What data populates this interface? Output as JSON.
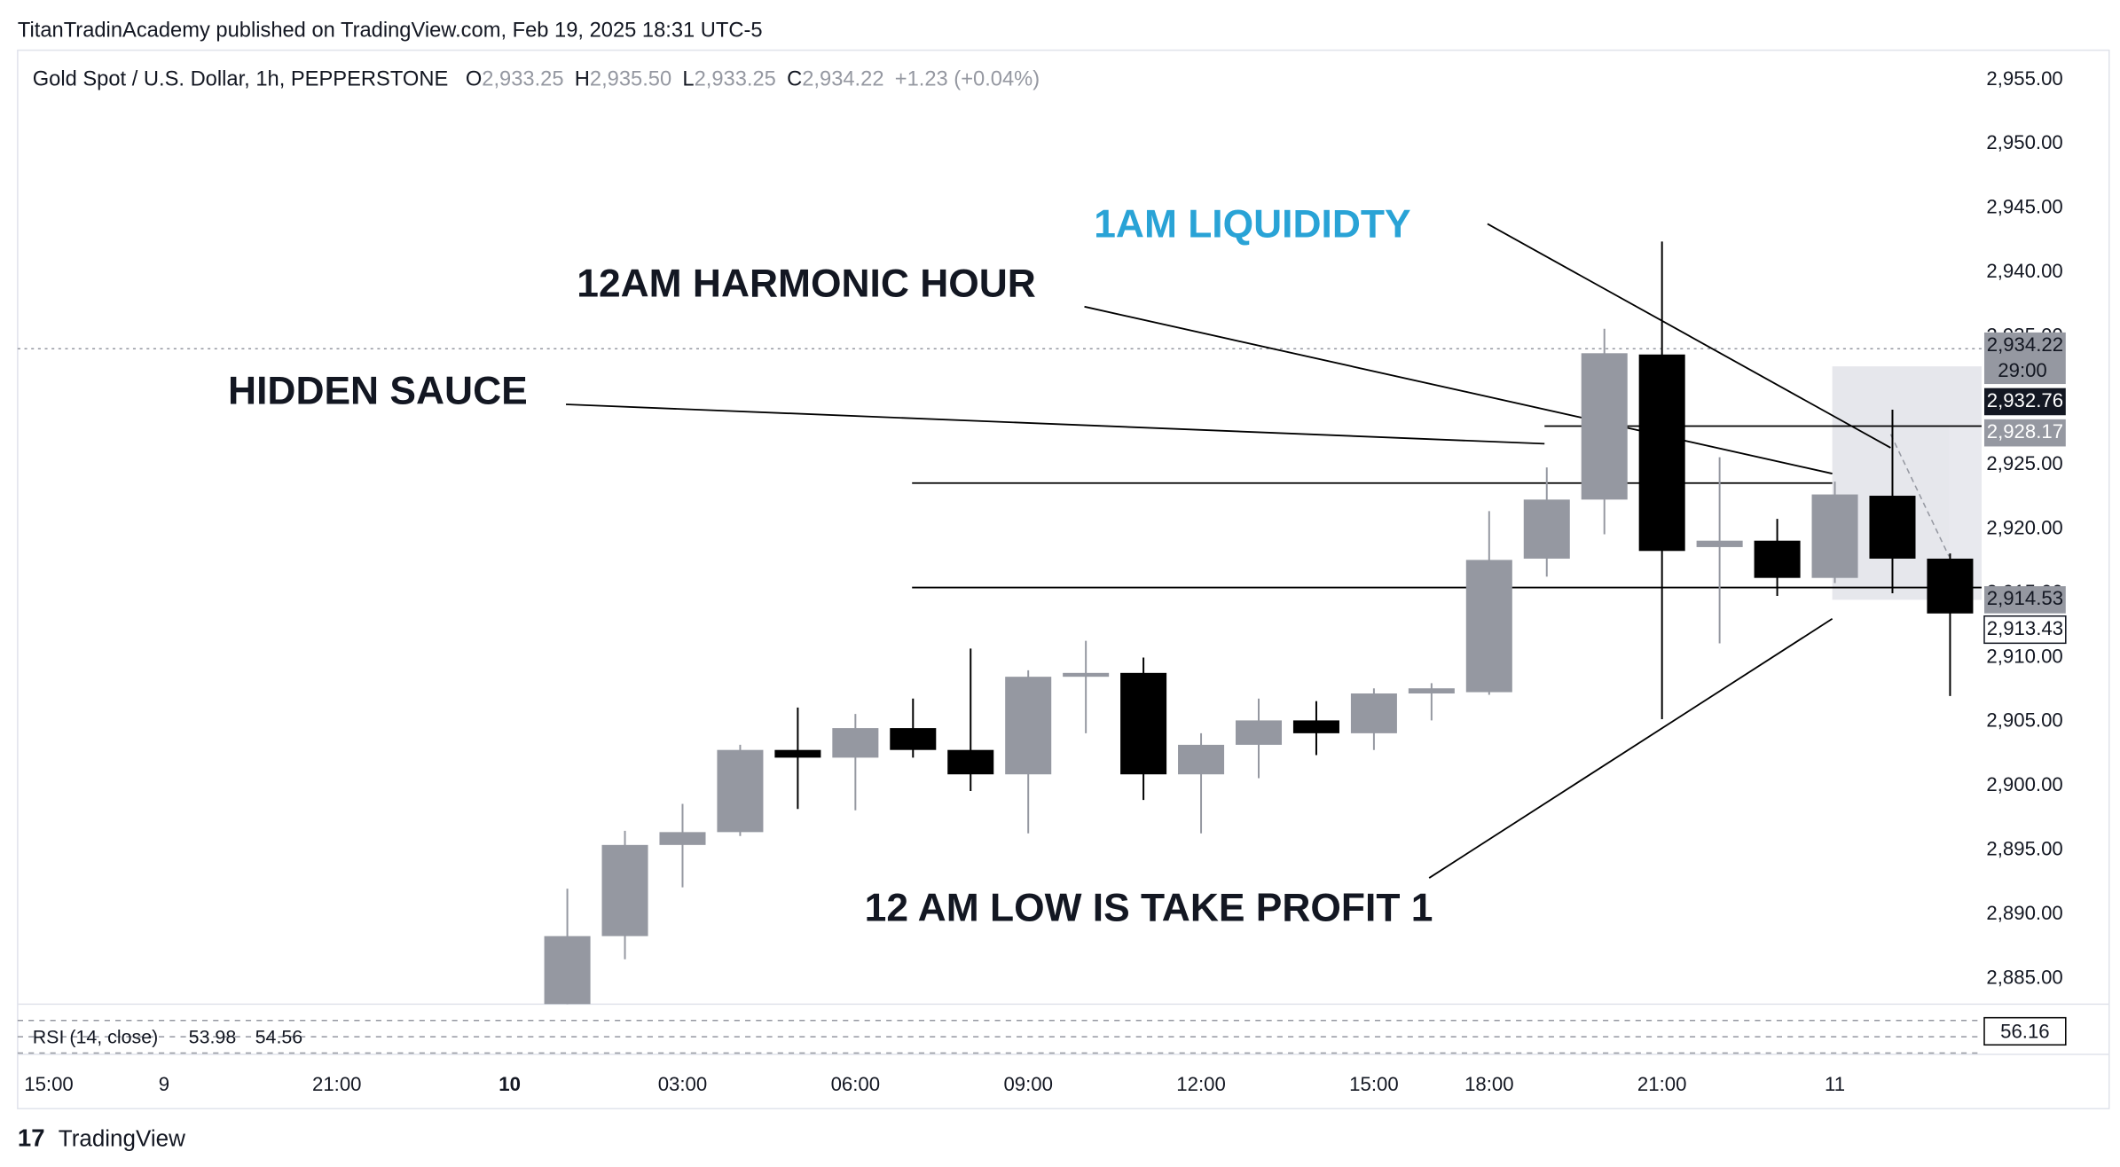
{
  "header": {
    "publisher": "TitanTradinAcademy published on TradingView.com, Feb 19, 2025 18:31 UTC-5"
  },
  "footer": {
    "brand": "TradingView"
  },
  "chart_data": {
    "type": "candlestick",
    "title": "Gold Spot / U.S. Dollar, 1h, PEPPERSTONE",
    "ohlc_legend": [
      {
        "key": "O",
        "value": "2,933.25"
      },
      {
        "key": "H",
        "value": "2,935.50"
      },
      {
        "key": "L",
        "value": "2,933.25"
      },
      {
        "key": "C",
        "value": "2,934.22"
      }
    ],
    "change": "+1.23 (+0.04%)",
    "up_color": "#9598a1",
    "down_color": "#000000",
    "open": [
      2883.0,
      2888.3,
      2895.4,
      2896.4,
      2902.8,
      2902.2,
      2904.5,
      2902.8,
      2900.9,
      2908.5,
      2908.8,
      2900.9,
      2903.2,
      2905.1,
      2904.1,
      2907.2,
      2907.3,
      2917.7,
      2922.3,
      2933.6,
      2918.6,
      2919.1,
      2916.2,
      2922.6,
      2917.7
    ],
    "high": [
      2892.0,
      2896.5,
      2898.6,
      2903.2,
      2906.1,
      2905.6,
      2906.8,
      2910.7,
      2909.0,
      2911.3,
      2910.0,
      2904.1,
      2906.8,
      2906.6,
      2907.6,
      2908.0,
      2921.4,
      2924.8,
      2935.6,
      2942.4,
      2925.6,
      2920.8,
      2923.7,
      2929.3,
      2918.1
    ],
    "low": [
      2882.5,
      2886.5,
      2892.1,
      2896.1,
      2898.2,
      2898.1,
      2902.2,
      2899.6,
      2896.3,
      2904.1,
      2898.9,
      2896.3,
      2900.6,
      2902.4,
      2902.8,
      2905.1,
      2907.1,
      2916.3,
      2919.6,
      2905.2,
      2911.1,
      2914.8,
      2915.8,
      2915.0,
      2907.0
    ],
    "close": [
      2888.3,
      2895.4,
      2896.4,
      2902.8,
      2902.2,
      2904.5,
      2902.8,
      2900.9,
      2908.5,
      2908.8,
      2900.9,
      2903.2,
      2905.1,
      2904.1,
      2907.2,
      2907.6,
      2917.6,
      2922.3,
      2933.7,
      2918.3,
      2919.1,
      2916.2,
      2922.7,
      2917.7,
      2913.43
    ],
    "ylim": [
      2883.0,
      2957.3
    ],
    "yticks": [
      {
        "value": 2885,
        "label": "2,885.00"
      },
      {
        "value": 2890,
        "label": "2,890.00"
      },
      {
        "value": 2895,
        "label": "2,895.00"
      },
      {
        "value": 2900,
        "label": "2,900.00"
      },
      {
        "value": 2905,
        "label": "2,905.00"
      },
      {
        "value": 2910,
        "label": "2,910.00"
      },
      {
        "value": 2915,
        "label": "2,915.00"
      },
      {
        "value": 2920,
        "label": "2,920.00"
      },
      {
        "value": 2925,
        "label": "2,925.00"
      },
      {
        "value": 2930,
        "label": "2,930.00"
      },
      {
        "value": 2935,
        "label": "2,935.00"
      },
      {
        "value": 2940,
        "label": "2,940.00"
      },
      {
        "value": 2945,
        "label": "2,945.00"
      },
      {
        "value": 2950,
        "label": "2,950.00"
      },
      {
        "value": 2955,
        "label": "2,955.00"
      }
    ],
    "xticks": [
      "15:00",
      "9",
      "21:00",
      "10",
      "03:00",
      "06:00",
      "09:00",
      "12:00",
      "15:00",
      "18:00",
      "21:00",
      "11"
    ],
    "price_labels": [
      {
        "value": 2934.22,
        "label": "2,934.22"
      },
      {
        "value": 2932.76,
        "label": "2,932.76"
      },
      {
        "value": 2928.17,
        "label": "2,928.17"
      },
      {
        "value": 2914.53,
        "label": "2,914.53"
      },
      {
        "value": 2913.43,
        "label": "2,913.43"
      }
    ],
    "countdown": "29:00",
    "annotations": [
      "1AM LIQUIDIDTY",
      "12AM HARMONIC HOUR",
      "HIDDEN SAUCE",
      "12 AM LOW IS TAKE PROFIT 1"
    ],
    "rsi": {
      "label": "RSI (14, close)",
      "values": [
        "53.98",
        "54.56"
      ],
      "last": "56.16"
    }
  }
}
